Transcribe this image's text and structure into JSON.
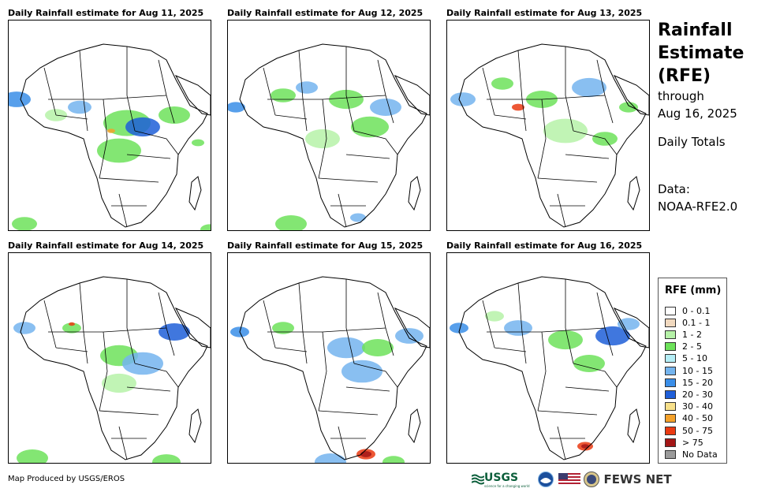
{
  "panels": [
    {
      "title": "Daily Rainfall estimate for Aug 11, 2025"
    },
    {
      "title": "Daily Rainfall estimate for Aug 12, 2025"
    },
    {
      "title": "Daily Rainfall estimate for Aug 13, 2025"
    },
    {
      "title": "Daily Rainfall estimate for Aug 14, 2025"
    },
    {
      "title": "Daily Rainfall estimate for Aug 15, 2025"
    },
    {
      "title": "Daily Rainfall estimate for Aug 16, 2025"
    }
  ],
  "side_title": {
    "line1": "Rainfall",
    "line2": "Estimate",
    "line3": "(RFE)",
    "line4": "through",
    "line5": "Aug 16, 2025",
    "line6": "Daily Totals",
    "line7": "Data:",
    "line8": "NOAA-RFE2.0"
  },
  "legend": {
    "title": "RFE (mm)",
    "items": [
      {
        "label": "0 - 0.1",
        "color": "#ffffff"
      },
      {
        "label": "0.1 - 1",
        "color": "#f1d9bf"
      },
      {
        "label": "1 - 2",
        "color": "#b6f2a8"
      },
      {
        "label": "2 - 5",
        "color": "#6de25a"
      },
      {
        "label": "5 - 10",
        "color": "#b4eef6"
      },
      {
        "label": "10 - 15",
        "color": "#74b4ee"
      },
      {
        "label": "15 - 20",
        "color": "#3a8ee8"
      },
      {
        "label": "20 - 30",
        "color": "#1f5fd8"
      },
      {
        "label": "30 - 40",
        "color": "#f7e08a"
      },
      {
        "label": "40 - 50",
        "color": "#f4a12a"
      },
      {
        "label": "50 - 75",
        "color": "#ea3a12"
      },
      {
        "label": "> 75",
        "color": "#a31616"
      },
      {
        "label": "No Data",
        "color": "#9a9a9a"
      }
    ]
  },
  "credit": "Map Produced by USGS/EROS",
  "logos": {
    "usgs": "USGS",
    "usgs_tagline": "science for a changing world",
    "fews": "FEWS NET"
  },
  "rain_fields": [
    [
      [
        10,
        100,
        18,
        "#3a8ee8"
      ],
      [
        90,
        110,
        15,
        "#74b4ee"
      ],
      [
        150,
        130,
        30,
        "#6de25a"
      ],
      [
        170,
        135,
        22,
        "#1f5fd8"
      ],
      [
        210,
        120,
        20,
        "#6de25a"
      ],
      [
        140,
        165,
        28,
        "#6de25a"
      ],
      [
        60,
        120,
        14,
        "#b6f2a8"
      ],
      [
        240,
        155,
        8,
        "#6de25a"
      ],
      [
        20,
        258,
        16,
        "#6de25a"
      ],
      [
        255,
        265,
        12,
        "#6de25a"
      ],
      [
        130,
        140,
        5,
        "#f4a12a"
      ]
    ],
    [
      [
        10,
        110,
        12,
        "#3a8ee8"
      ],
      [
        70,
        95,
        16,
        "#6de25a"
      ],
      [
        100,
        85,
        14,
        "#74b4ee"
      ],
      [
        150,
        100,
        22,
        "#6de25a"
      ],
      [
        200,
        110,
        20,
        "#74b4ee"
      ],
      [
        180,
        135,
        24,
        "#6de25a"
      ],
      [
        120,
        150,
        22,
        "#b6f2a8"
      ],
      [
        80,
        258,
        20,
        "#6de25a"
      ],
      [
        165,
        250,
        10,
        "#74b4ee"
      ]
    ],
    [
      [
        20,
        100,
        16,
        "#74b4ee"
      ],
      [
        70,
        80,
        14,
        "#6de25a"
      ],
      [
        120,
        100,
        20,
        "#6de25a"
      ],
      [
        180,
        85,
        22,
        "#74b4ee"
      ],
      [
        150,
        140,
        28,
        "#b6f2a8"
      ],
      [
        90,
        110,
        8,
        "#ea3a12"
      ],
      [
        230,
        110,
        12,
        "#6de25a"
      ],
      [
        200,
        150,
        16,
        "#6de25a"
      ]
    ],
    [
      [
        20,
        95,
        14,
        "#74b4ee"
      ],
      [
        80,
        95,
        12,
        "#6de25a"
      ],
      [
        140,
        130,
        24,
        "#6de25a"
      ],
      [
        210,
        100,
        20,
        "#1f5fd8"
      ],
      [
        170,
        140,
        26,
        "#74b4ee"
      ],
      [
        140,
        165,
        22,
        "#b6f2a8"
      ],
      [
        30,
        260,
        20,
        "#6de25a"
      ],
      [
        200,
        265,
        18,
        "#6de25a"
      ],
      [
        80,
        90,
        4,
        "#ea3a12"
      ]
    ],
    [
      [
        15,
        100,
        12,
        "#3a8ee8"
      ],
      [
        70,
        95,
        14,
        "#6de25a"
      ],
      [
        150,
        120,
        24,
        "#74b4ee"
      ],
      [
        230,
        105,
        18,
        "#74b4ee"
      ],
      [
        170,
        150,
        26,
        "#74b4ee"
      ],
      [
        190,
        120,
        20,
        "#6de25a"
      ],
      [
        175,
        255,
        12,
        "#ea3a12"
      ],
      [
        175,
        255,
        7,
        "#a31616"
      ],
      [
        130,
        265,
        20,
        "#74b4ee"
      ],
      [
        210,
        265,
        14,
        "#6de25a"
      ]
    ],
    [
      [
        15,
        95,
        12,
        "#3a8ee8"
      ],
      [
        90,
        95,
        18,
        "#74b4ee"
      ],
      [
        150,
        110,
        22,
        "#6de25a"
      ],
      [
        210,
        105,
        22,
        "#1f5fd8"
      ],
      [
        180,
        140,
        20,
        "#6de25a"
      ],
      [
        60,
        80,
        12,
        "#b6f2a8"
      ],
      [
        175,
        245,
        10,
        "#ea3a12"
      ],
      [
        175,
        245,
        5,
        "#a31616"
      ],
      [
        230,
        90,
        14,
        "#74b4ee"
      ]
    ]
  ]
}
